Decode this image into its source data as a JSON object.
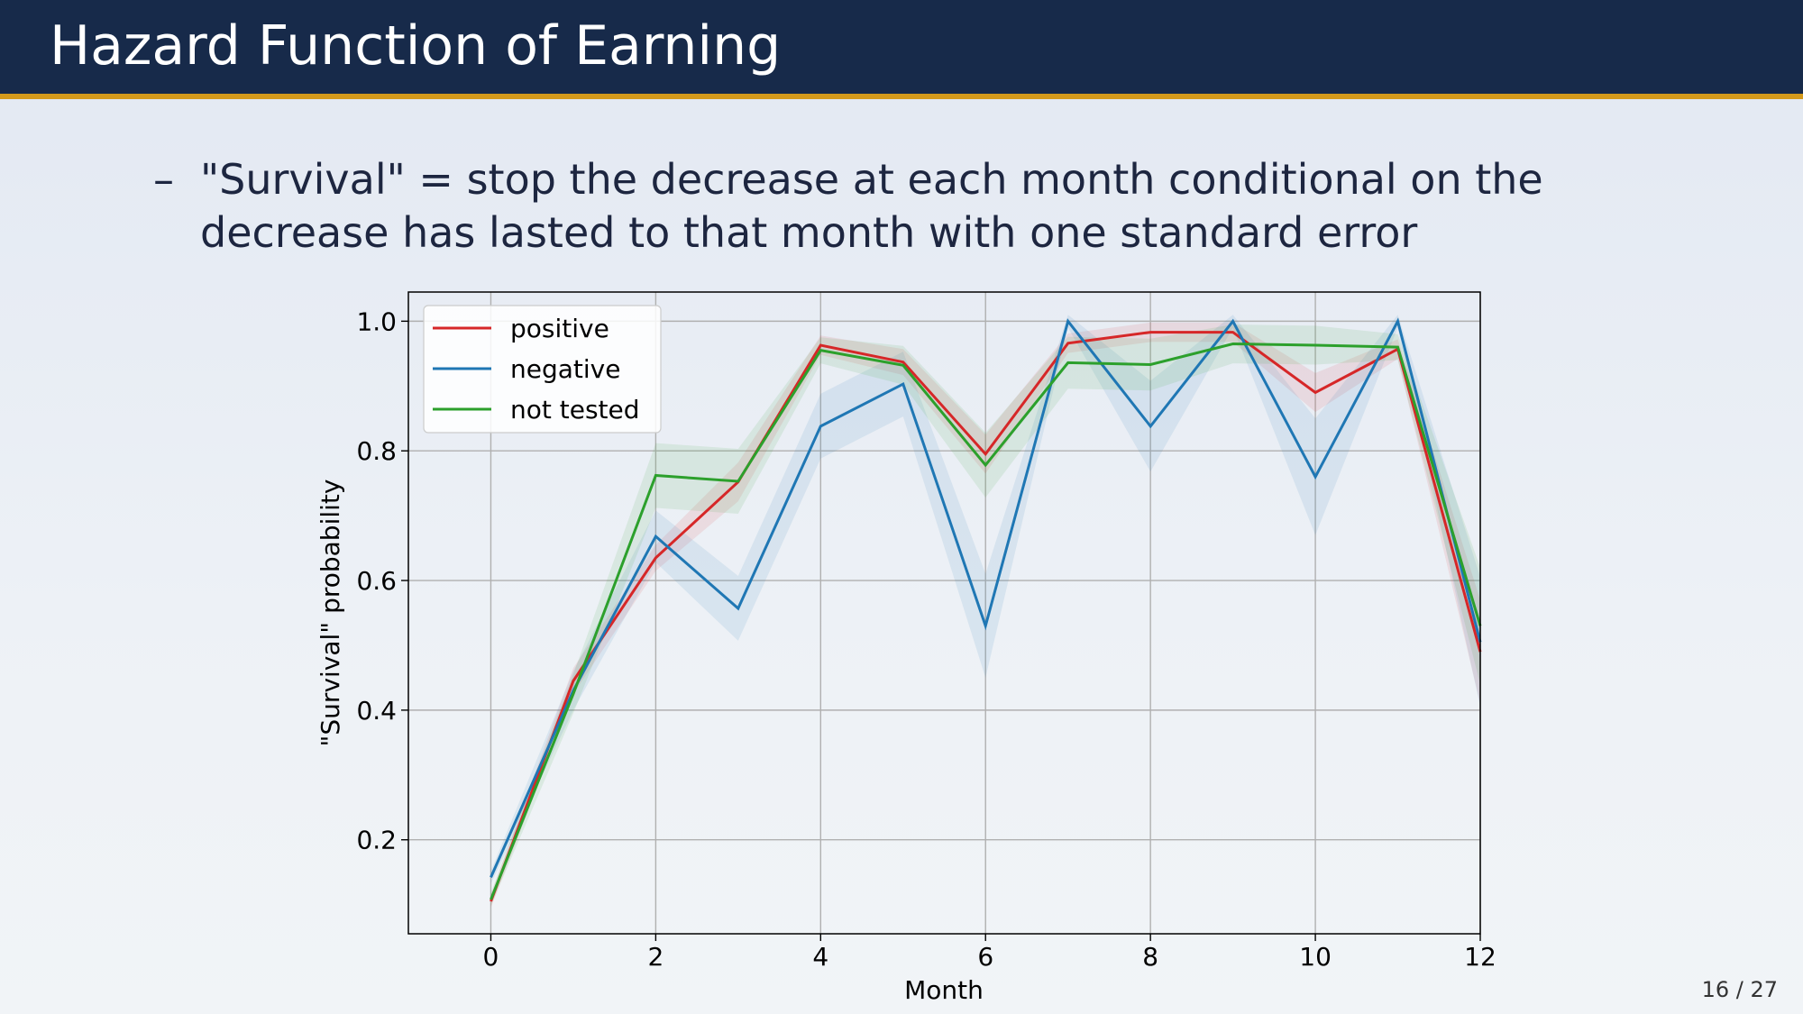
{
  "header": {
    "title": "Hazard Function of Earning"
  },
  "bullet": {
    "marker": "–",
    "text": "\"Survival\" = stop the decrease at each month conditional on the decrease has lasted to that month with one standard error"
  },
  "page": {
    "number": "16 / 27"
  },
  "chart_data": {
    "type": "line",
    "title": "",
    "xlabel": "Month",
    "ylabel": "\"Survival\" probability",
    "xlim": [
      -1,
      12
    ],
    "ylim": [
      0.055,
      1.045
    ],
    "xticks": [
      0,
      2,
      4,
      6,
      8,
      10,
      12
    ],
    "yticks": [
      0.2,
      0.4,
      0.6,
      0.8,
      1.0
    ],
    "ytick_labels": [
      "0.2",
      "0.4",
      "0.6",
      "0.8",
      "1.0"
    ],
    "grid": true,
    "legend_position": "top-left",
    "x": [
      0,
      1,
      2,
      3,
      4,
      5,
      6,
      7,
      8,
      9,
      10,
      11,
      12
    ],
    "series": [
      {
        "name": "positive",
        "color": "#d62728",
        "values": [
          0.105,
          0.445,
          0.635,
          0.752,
          0.963,
          0.937,
          0.795,
          0.966,
          0.983,
          0.983,
          0.89,
          0.957,
          0.49
        ],
        "stderr": [
          0.01,
          0.02,
          0.02,
          0.03,
          0.015,
          0.02,
          0.03,
          0.015,
          0.015,
          0.015,
          0.03,
          0.015,
          0.08
        ]
      },
      {
        "name": "negative",
        "color": "#1f77b4",
        "values": [
          0.142,
          0.43,
          0.668,
          0.557,
          0.838,
          0.903,
          0.53,
          1.0,
          0.838,
          1.0,
          0.76,
          1.0,
          0.505
        ],
        "stderr": [
          0.01,
          0.03,
          0.04,
          0.05,
          0.05,
          0.05,
          0.08,
          0.01,
          0.07,
          0.01,
          0.09,
          0.01,
          0.1
        ]
      },
      {
        "name": "not tested",
        "color": "#2ca02c",
        "values": [
          0.108,
          0.425,
          0.762,
          0.753,
          0.955,
          0.932,
          0.778,
          0.936,
          0.933,
          0.965,
          0.963,
          0.96,
          0.53
        ],
        "stderr": [
          0.01,
          0.03,
          0.05,
          0.05,
          0.02,
          0.03,
          0.05,
          0.04,
          0.04,
          0.03,
          0.03,
          0.02,
          0.09
        ]
      }
    ]
  }
}
